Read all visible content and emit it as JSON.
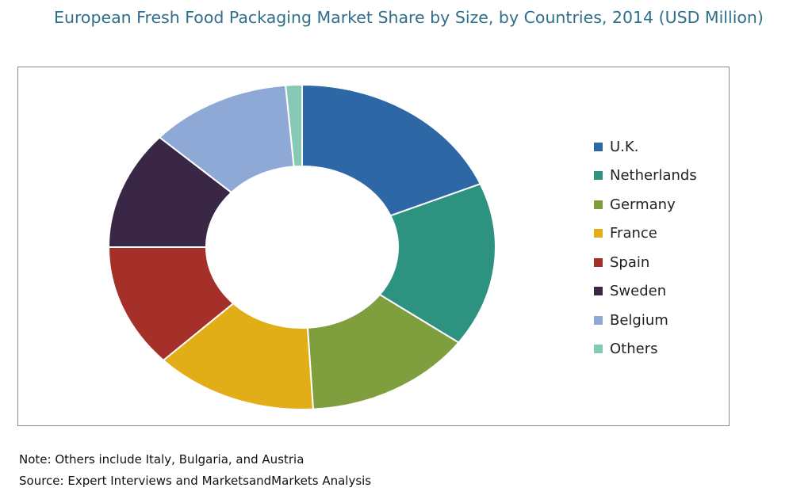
{
  "title": "European Fresh Food Packaging Market Share by Size, by Countries, 2014 (USD Million)",
  "note": "Note: Others include Italy, Bulgaria, and Austria",
  "source": "Source: Expert Interviews and MarketsandMarkets Analysis",
  "chart_data": {
    "type": "pie",
    "variant": "donut",
    "title": "European Fresh Food Packaging Market Share by Size, by Countries, 2014 (USD Million)",
    "legend_position": "right",
    "categories": [
      "U.K.",
      "Netherlands",
      "Germany",
      "France",
      "Spain",
      "Sweden",
      "Belgium",
      "Others"
    ],
    "values": [
      20.5,
      18.0,
      15.5,
      15.0,
      13.5,
      13.0,
      13.0,
      1.5
    ],
    "colors": [
      "#2e67a6",
      "#2e9280",
      "#7f9f3f",
      "#e2ae17",
      "#a5302a",
      "#3a2746",
      "#8fa9d6",
      "#86c9b4"
    ]
  }
}
